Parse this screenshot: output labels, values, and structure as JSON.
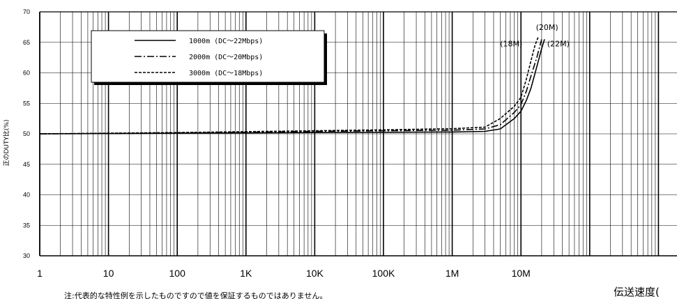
{
  "chart_data": {
    "type": "line",
    "xscale": "log",
    "xlim": [
      1,
      100000000
    ],
    "ylim": [
      30,
      70
    ],
    "ylabel": "正のDUTY比(%)",
    "xlabel": "伝送速度(",
    "grid": true,
    "legend_position": "top-left",
    "yticks": [
      "30",
      "35",
      "40",
      "45",
      "50",
      "55",
      "60",
      "65",
      "70"
    ],
    "xticks": [
      {
        "label": "1",
        "value": 1
      },
      {
        "label": "10",
        "value": 10
      },
      {
        "label": "100",
        "value": 100
      },
      {
        "label": "1K",
        "value": 1000
      },
      {
        "label": "10K",
        "value": 10000
      },
      {
        "label": "100K",
        "value": 100000
      },
      {
        "label": "1M",
        "value": 1000000
      },
      {
        "label": "10M",
        "value": 10000000
      }
    ],
    "series": [
      {
        "name": "1000m (DC～22Mbps)",
        "style": "solid",
        "x": [
          1,
          10,
          100,
          1000,
          10000,
          100000,
          1000000,
          3000000,
          5000000,
          8000000,
          10000000,
          12000000,
          14000000,
          17000000,
          20000000,
          22000000
        ],
        "y": [
          50.0,
          50.05,
          50.1,
          50.15,
          50.2,
          50.25,
          50.3,
          50.4,
          50.8,
          52.5,
          53.7,
          55.5,
          57.5,
          61.0,
          64.0,
          65.5
        ]
      },
      {
        "name": "2000m (DC～20Mbps)",
        "style": "dashdot",
        "x": [
          1,
          10,
          100,
          1000,
          10000,
          100000,
          1000000,
          3000000,
          5000000,
          8000000,
          10000000,
          12000000,
          14000000,
          17000000,
          20000000
        ],
        "y": [
          50.0,
          50.05,
          50.15,
          50.25,
          50.4,
          50.5,
          50.6,
          50.8,
          51.5,
          53.5,
          54.8,
          57.0,
          59.5,
          62.5,
          65.5
        ]
      },
      {
        "name": "3000m (DC～18Mbps)",
        "style": "dashed",
        "x": [
          1,
          10,
          100,
          1000,
          10000,
          100000,
          1000000,
          3000000,
          5000000,
          8000000,
          10000000,
          12000000,
          14000000,
          16000000,
          18000000
        ],
        "y": [
          50.0,
          50.1,
          50.2,
          50.35,
          50.5,
          50.65,
          50.85,
          51.1,
          52.5,
          54.5,
          56.0,
          59.0,
          62.0,
          64.5,
          66.0
        ]
      }
    ],
    "annotations": [
      {
        "text": "(18M)",
        "x": 10500000,
        "y": 64.8,
        "anchor": "end"
      },
      {
        "text": "(20M)",
        "x": 24000000,
        "y": 67.5,
        "anchor": "middle"
      },
      {
        "text": "(22M)",
        "x": 35000000,
        "y": 64.8,
        "anchor": "middle"
      }
    ]
  },
  "footnote": "注:代表的な特性例を示したものですので値を保証するものではありません。"
}
